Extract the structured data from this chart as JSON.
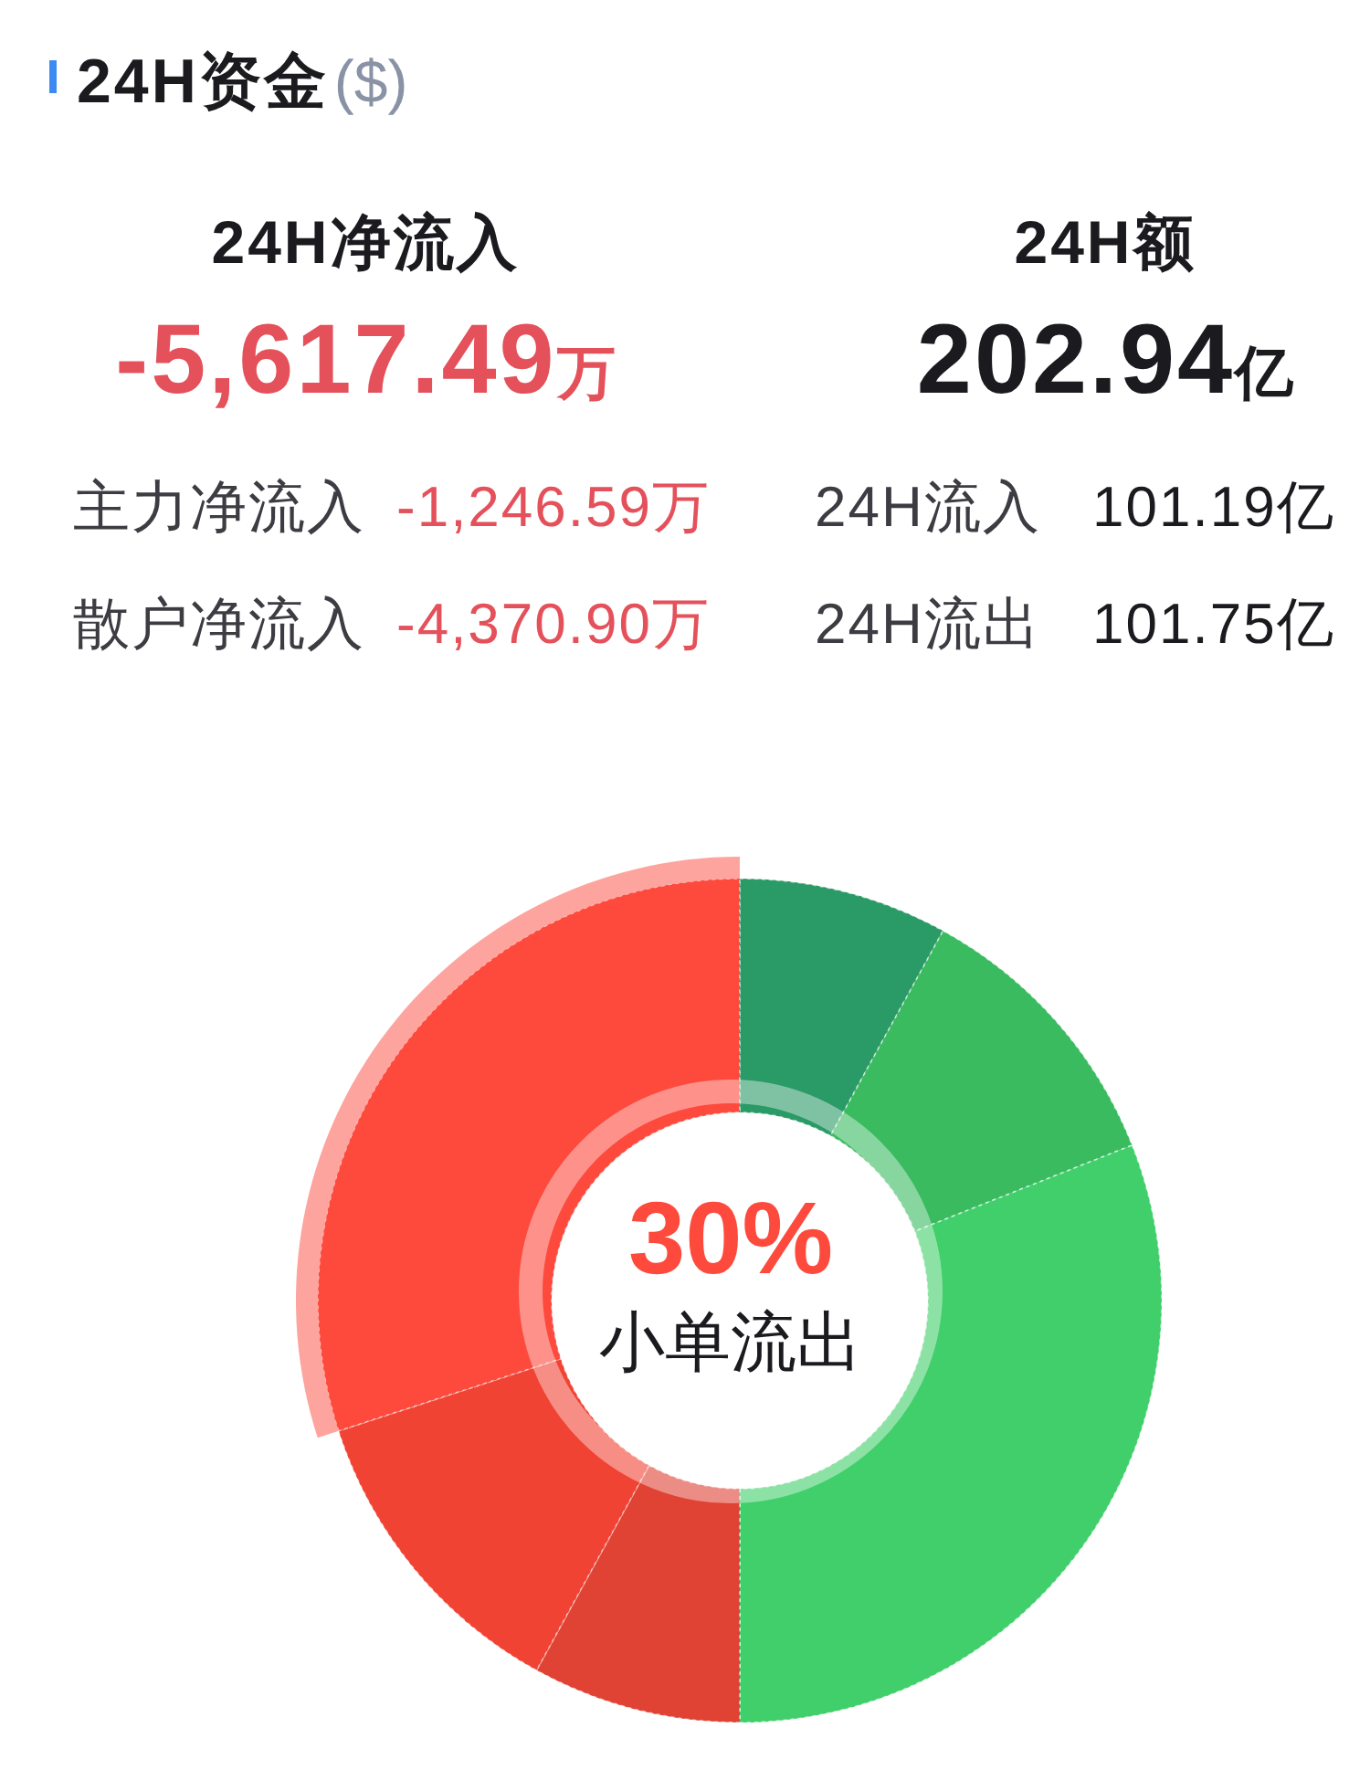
{
  "chart_data": [
    {
      "type": "other",
      "title": "24H资金",
      "subtitle": "($)",
      "annotations": [
        "24H净流入",
        "-5,617.49万",
        "24H额",
        "202.94亿",
        "主力净流入",
        "-1,246.59万",
        "散户净流入",
        "-4,370.90万",
        "24H流入",
        "101.19亿",
        "24H流出",
        "101.75亿"
      ]
    },
    {
      "type": "donut",
      "categories": [
        null,
        null,
        null,
        null,
        null,
        "小单流出"
      ],
      "values": [
        8,
        11,
        31,
        8,
        12,
        30
      ],
      "colors": [
        "#2a9a66",
        "#3abb5f",
        "#40cf6a",
        "#e04234",
        "#f04334",
        "#fd4a3d"
      ],
      "value_labels": [
        null,
        null,
        null,
        null,
        null,
        "30%"
      ]
    }
  ]
}
